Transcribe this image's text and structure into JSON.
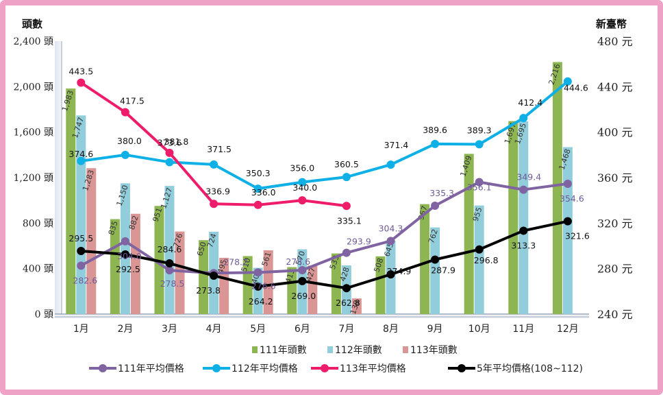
{
  "chart_data": {
    "type": "bar+line",
    "y_left_label": "頭數",
    "y_right_label": "新臺幣",
    "y_left_ticks": [
      "0 頭",
      "400 頭",
      "800 頭",
      "1,200 頭",
      "1,600 頭",
      "2,000 頭",
      "2,400 頭"
    ],
    "y_right_ticks": [
      "240 元",
      "280 元",
      "320 元",
      "360 元",
      "400 元",
      "440 元",
      "480 元"
    ],
    "y_left_range": [
      0,
      2400
    ],
    "y_right_range": [
      240,
      480
    ],
    "categories": [
      "1月",
      "2月",
      "3月",
      "4月",
      "5月",
      "6月",
      "7月",
      "8月",
      "9月",
      "10月",
      "11月",
      "12月"
    ],
    "bar_series": [
      {
        "name": "111年頭數",
        "color": "#8db552",
        "values": [
          1983,
          835,
          951,
          650,
          510,
          413,
          533,
          508,
          967,
          1409,
          1697,
          2216
        ],
        "labels": [
          "1,983",
          "835",
          "951",
          "650",
          "510",
          "413",
          "533",
          "508",
          "967",
          "1,409",
          "1,697",
          "2,216"
        ]
      },
      {
        "name": "112年頭數",
        "color": "#92cddc",
        "values": [
          1747,
          1150,
          1127,
          724,
          407,
          570,
          428,
          645,
          762,
          955,
          1695,
          1468
        ],
        "labels": [
          "1,747",
          "1,150",
          "1,127",
          "724",
          "407",
          "570",
          "428",
          "645",
          "762",
          "955",
          "1,695",
          "1,468"
        ]
      },
      {
        "name": "113年頭數",
        "color": "#da9694",
        "values": [
          1283,
          882,
          726,
          495,
          561,
          427,
          138,
          null,
          null,
          null,
          null,
          null
        ],
        "labels": [
          "1,283",
          "882",
          "726",
          "495",
          "561",
          "427",
          "138",
          "",
          "",
          "",
          "",
          ""
        ]
      }
    ],
    "line_series": [
      {
        "name": "111年平均價格",
        "color": "#8064a2",
        "values": [
          282.6,
          304.0,
          278.5,
          276.0,
          276.6,
          278.6,
          293.9,
          304.3,
          335.3,
          356.1,
          349.4,
          354.6
        ],
        "labels": [
          "282.6",
          "304.0",
          "278.5",
          "",
          "276.6",
          "278.6",
          "293.9",
          "304.3",
          "335.3",
          "356.1",
          "349.4",
          "354.6"
        ]
      },
      {
        "name": "112年平均價格",
        "color": "#0fb0e6",
        "values": [
          374.6,
          380.0,
          373.6,
          371.5,
          350.3,
          356.0,
          360.5,
          371.4,
          389.6,
          389.3,
          412.4,
          444.6
        ],
        "labels": [
          "374.6",
          "380.0",
          "373.6",
          "371.5",
          "350.3",
          "356.0",
          "360.5",
          "371.4",
          "389.6",
          "389.3",
          "412.4",
          "444.6"
        ]
      },
      {
        "name": "113年平均價格",
        "color": "#ee1c6a",
        "values": [
          443.5,
          417.5,
          381.8,
          336.9,
          336.0,
          340.0,
          335.1,
          null,
          null,
          null,
          null,
          null
        ],
        "labels": [
          "443.5",
          "417.5",
          "381.8",
          "336.9",
          "336.0",
          "340.0",
          "335.1",
          "",
          "",
          "",
          "",
          ""
        ]
      },
      {
        "name": "5年平均價格(108~112)",
        "color": "#000000",
        "values": [
          295.5,
          292.5,
          284.6,
          273.8,
          264.2,
          269.0,
          262.8,
          274.9,
          287.9,
          296.8,
          313.3,
          321.6
        ],
        "labels": [
          "295.5",
          "292.5",
          "284.6",
          "273.8",
          "264.2",
          "269.0",
          "262.8",
          "274.9",
          "287.9",
          "296.8",
          "313.3",
          "321.6"
        ]
      }
    ],
    "extra_labels": [
      "278.2"
    ],
    "grid": false,
    "legend_position": "bottom"
  }
}
